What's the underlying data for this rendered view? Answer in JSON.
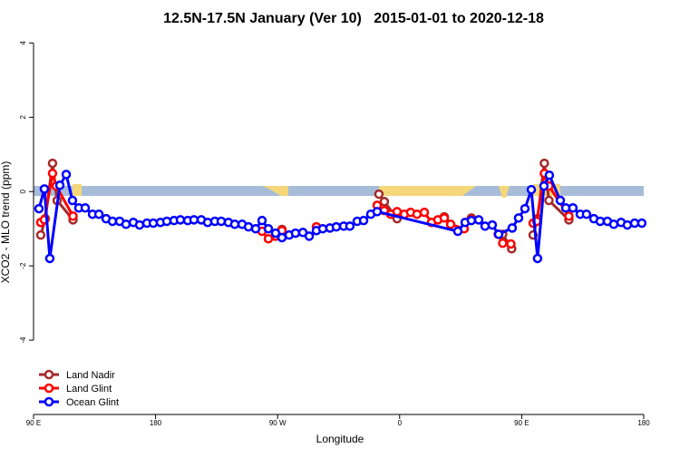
{
  "chart_data": {
    "type": "line",
    "title": "12.5N-17.5N January (Ver 10)   2015-01-01 to 2020-12-18",
    "xlabel": "Longitude",
    "ylabel": "XCO2 - MLO trend (ppm)",
    "xlim": [
      90,
      540
    ],
    "ylim": [
      -6,
      4.4
    ],
    "xticks": [
      {
        "value": 90,
        "label": "90 E"
      },
      180,
      {
        "value": 270,
        "label": "90 W"
      },
      {
        "value": 360,
        "label": "0"
      },
      {
        "value": 450,
        "label": "90 E"
      },
      {
        "value": 540,
        "label": "180"
      }
    ],
    "yticks": [
      -4,
      -2,
      0,
      2,
      4
    ],
    "legend": "bottom-left",
    "series": [
      {
        "name": "Land Nadir",
        "color": "#a52a2a",
        "x": [
          95.3,
          98.7,
          104.0,
          107.4,
          119.1,
          null,
          273.2,
          null,
          344.7,
          348.7,
          358.1,
          null,
          392.9,
          null,
          412.9,
          null,
          436.0,
          442.6,
          null,
          458.4,
          461.7,
          466.7,
          470.1,
          484.8
        ],
        "values": [
          -1.17,
          -0.73,
          0.76,
          -0.24,
          -0.76,
          null,
          -1.02,
          null,
          -0.07,
          -0.27,
          -0.73,
          null,
          -0.68,
          null,
          -0.71,
          null,
          -1.15,
          -1.54,
          null,
          -1.17,
          -0.73,
          0.76,
          -0.24,
          -0.76
        ]
      },
      {
        "name": "Land Glint",
        "color": "#ff0000",
        "x": [
          95.3,
          98.0,
          104.0,
          106.7,
          119.1,
          null,
          258.5,
          263.2,
          268.5,
          273.2,
          null,
          298.6,
          null,
          343.4,
          348.7,
          353.4,
          358.1,
          363.5,
          368.1,
          372.8,
          378.2,
          383.5,
          388.2,
          392.9,
          397.6,
          407.6,
          412.9,
          null,
          432.7,
          436.0,
          442.0,
          null,
          458.4,
          461.1,
          466.7,
          470.1,
          484.8
        ],
        "values": [
          -0.83,
          -0.76,
          0.49,
          0.15,
          -0.66,
          null,
          -1.07,
          -1.27,
          -1.2,
          -1.05,
          null,
          -0.95,
          null,
          -0.37,
          -0.51,
          -0.61,
          -0.54,
          -0.61,
          -0.56,
          -0.61,
          -0.56,
          -0.83,
          -0.76,
          -0.71,
          -0.88,
          -1.0,
          -0.76,
          null,
          -1.15,
          -1.39,
          -1.41,
          null,
          -0.85,
          -0.8,
          0.49,
          0.15,
          -0.66
        ]
      },
      {
        "name": "Ocean Glint",
        "color": "#0000ff",
        "x": [
          94.0,
          98.0,
          102.0,
          109.4,
          114.1,
          118.7,
          123.4,
          128.1,
          133.5,
          138.2,
          143.5,
          148.2,
          153.5,
          158.2,
          163.6,
          168.2,
          173.6,
          178.3,
          183.6,
          188.3,
          193.6,
          198.3,
          203.7,
          208.3,
          213.7,
          218.4,
          223.7,
          228.4,
          233.7,
          238.4,
          243.8,
          248.5,
          253.8,
          258.5,
          263.2,
          268.5,
          273.2,
          278.5,
          283.2,
          288.6,
          293.3,
          298.6,
          303.3,
          308.6,
          313.3,
          318.7,
          323.3,
          328.7,
          333.4,
          338.7,
          343.4,
          402.9,
          408.3,
          412.9,
          418.3,
          423.0,
          428.3,
          433.0,
          443.0,
          447.7,
          452.4,
          457.1,
          461.7,
          466.4,
          470.4,
          478.5,
          482.5,
          487.8,
          493.2,
          497.8,
          503.2,
          507.9,
          513.2,
          517.9,
          523.3,
          527.9,
          533.3,
          538.6
        ],
        "values": [
          -0.46,
          0.07,
          -1.8,
          0.17,
          0.46,
          -0.24,
          -0.44,
          -0.44,
          -0.61,
          -0.61,
          -0.73,
          -0.8,
          -0.8,
          -0.88,
          -0.83,
          -0.9,
          -0.85,
          -0.85,
          -0.83,
          -0.8,
          -0.78,
          -0.76,
          -0.78,
          -0.76,
          -0.76,
          -0.83,
          -0.8,
          -0.8,
          -0.83,
          -0.88,
          -0.88,
          -0.95,
          -1.0,
          -0.78,
          -1.0,
          -1.12,
          -1.24,
          -1.17,
          -1.12,
          -1.1,
          -1.2,
          -1.05,
          -1.0,
          -0.98,
          -0.95,
          -0.93,
          -0.93,
          -0.8,
          -0.78,
          -0.61,
          -0.54,
          -1.07,
          -0.83,
          -0.78,
          -0.76,
          -0.93,
          -0.9,
          -1.15,
          -0.98,
          -0.71,
          -0.46,
          0.05,
          -1.8,
          0.15,
          0.44,
          -0.24,
          -0.44,
          -0.44,
          -0.61,
          -0.61,
          -0.73,
          -0.8,
          -0.8,
          -0.88,
          -0.83,
          -0.9,
          -0.85,
          -0.85
        ]
      }
    ]
  }
}
